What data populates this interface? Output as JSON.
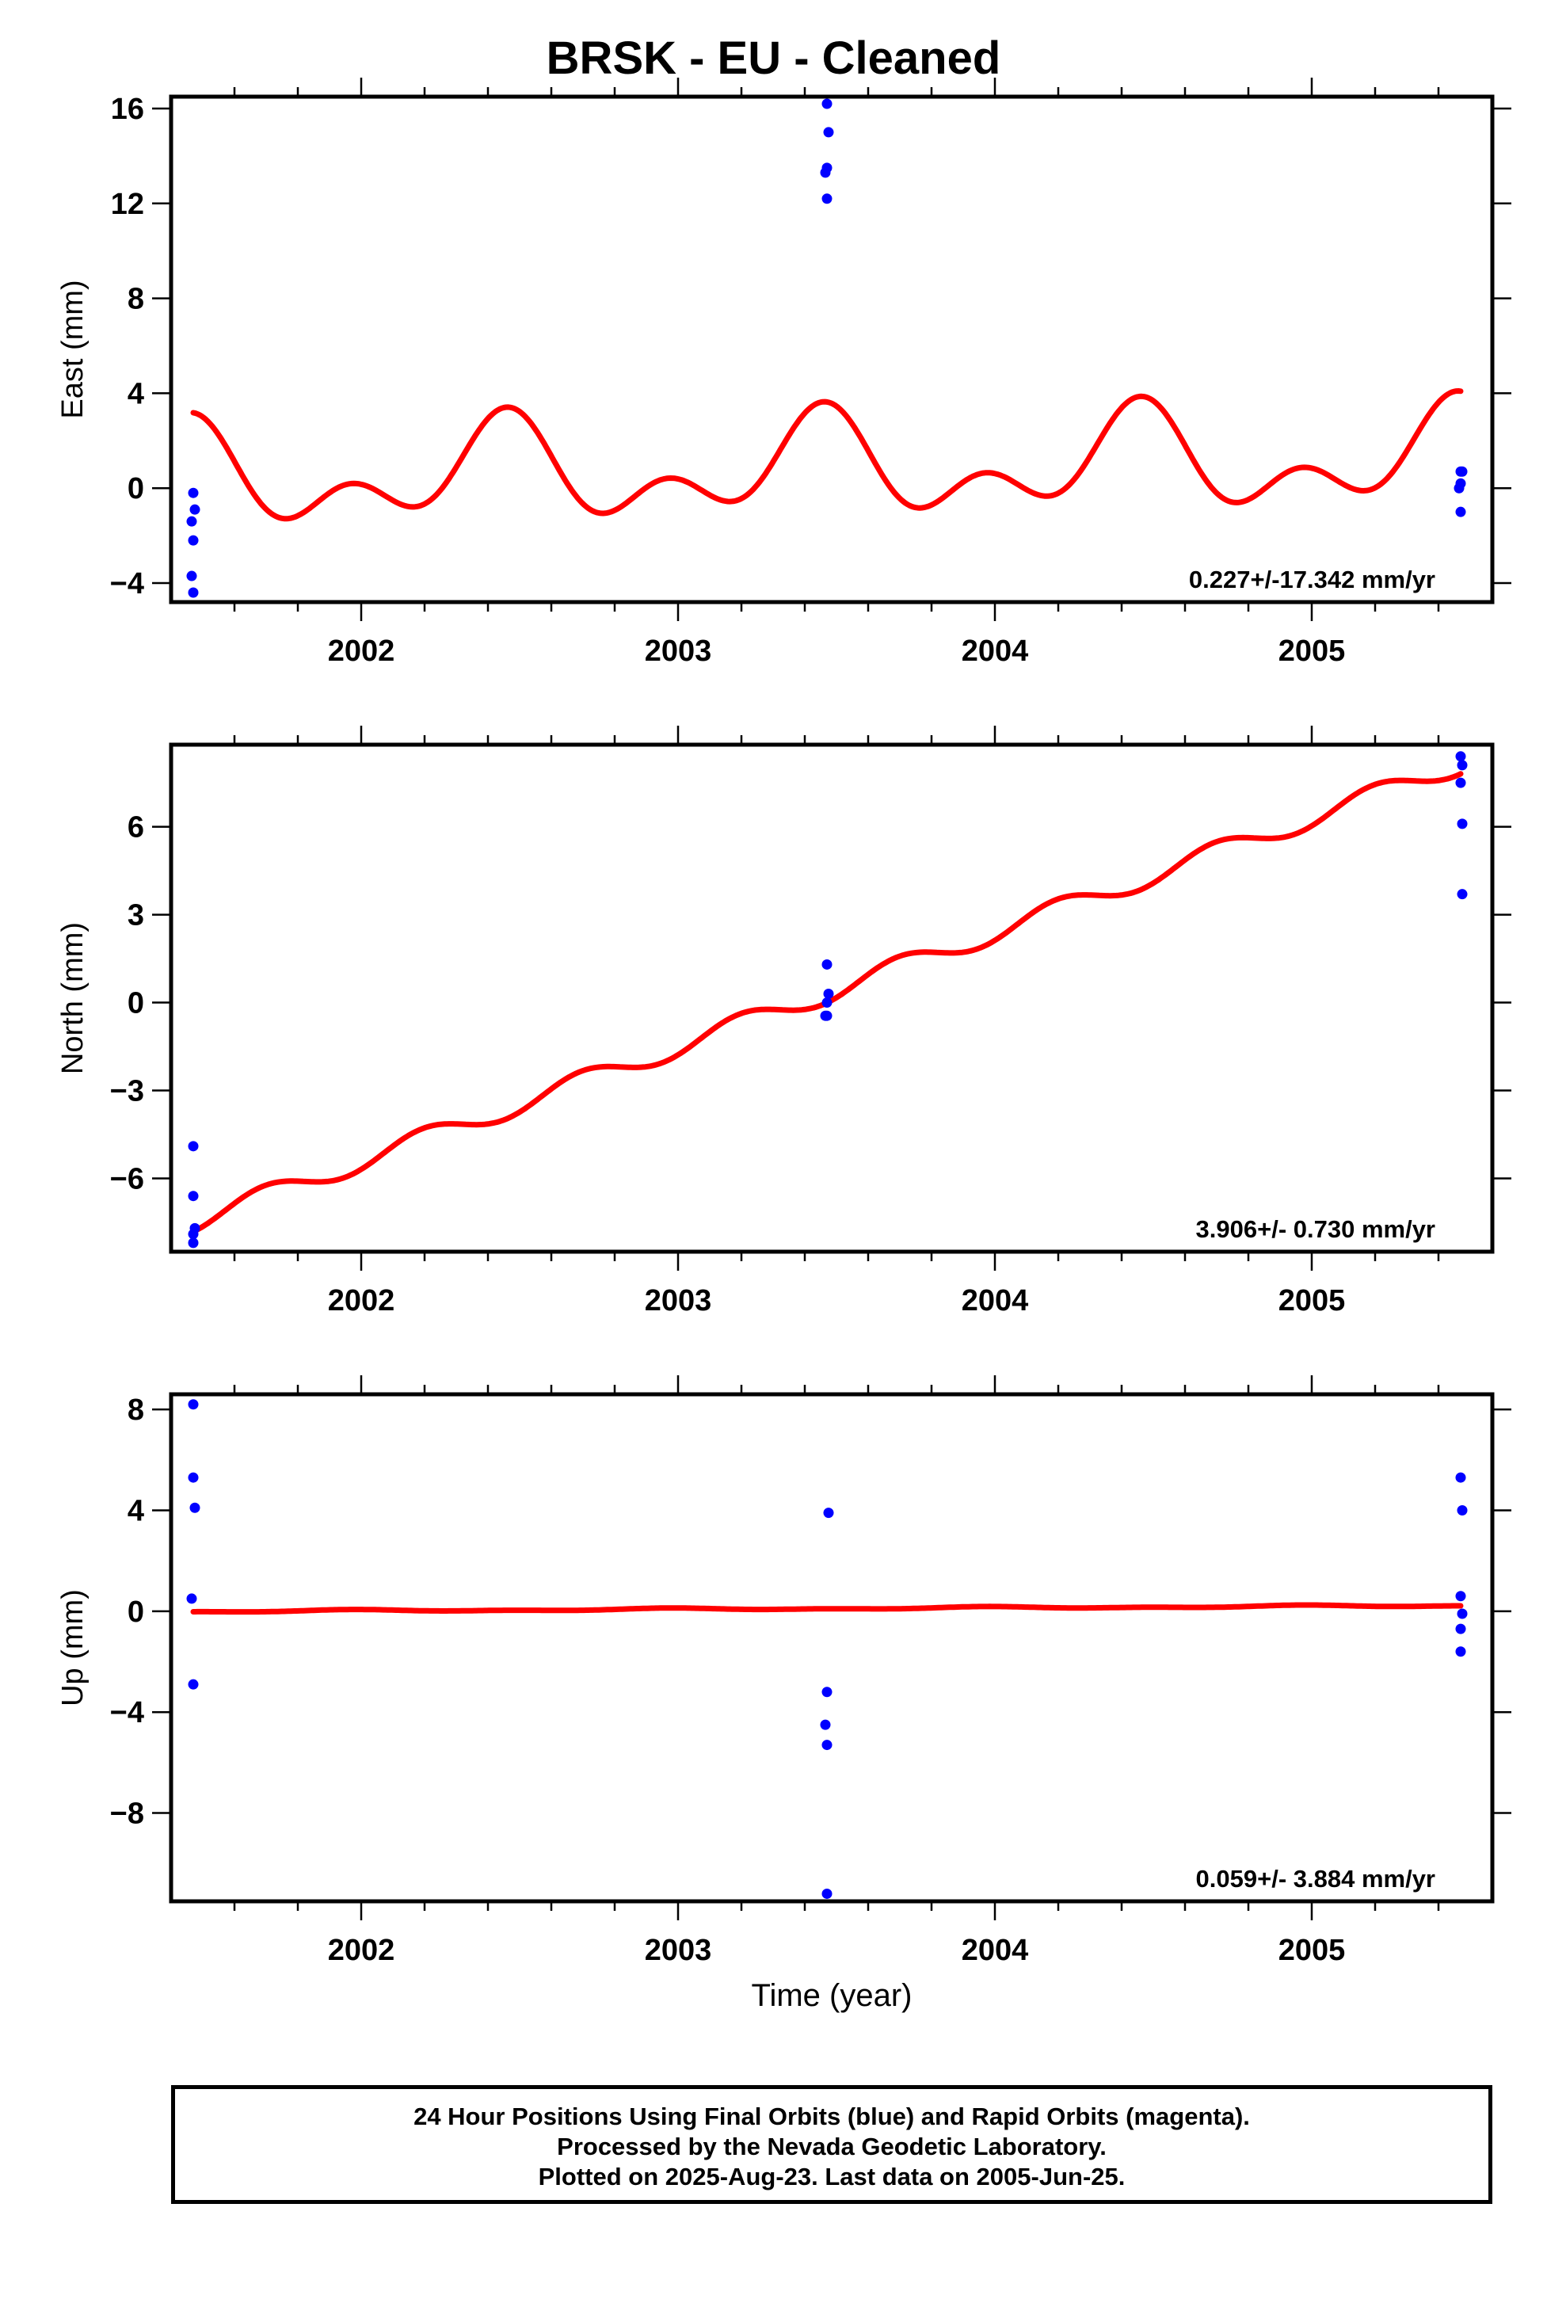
{
  "title": "BRSK  - EU - Cleaned",
  "colors": {
    "data": "#0000ff",
    "model": "#ff0000"
  },
  "x_ticks": [
    2002,
    2003,
    2004,
    2005
  ],
  "x_axis_label": "Time (year)",
  "footer": {
    "line1": "24 Hour Positions Using Final Orbits (blue) and Rapid Orbits (magenta).",
    "line2": "Processed by the Nevada Geodetic Laboratory.",
    "line3": "Plotted on 2025-Aug-23. Last data on 2005-Jun-25."
  },
  "chart_data": [
    {
      "type": "scatter",
      "ylabel": "East (mm)",
      "xlim": [
        2001.4,
        2005.57
      ],
      "ylim": [
        -4.8,
        16.5
      ],
      "yticks": [
        -4,
        0,
        4,
        8,
        12,
        16
      ],
      "ytick_labels": [
        "−4",
        "0",
        "4",
        "8",
        "12",
        "16"
      ],
      "rate_text": "0.227+/-17.342 mm/yr",
      "points": [
        [
          2001.47,
          -0.2
        ],
        [
          2001.475,
          -0.9
        ],
        [
          2001.465,
          -1.4
        ],
        [
          2001.47,
          -2.2
        ],
        [
          2001.465,
          -3.7
        ],
        [
          2001.47,
          -4.4
        ],
        [
          2003.47,
          16.2
        ],
        [
          2003.475,
          15.0
        ],
        [
          2003.47,
          13.5
        ],
        [
          2003.465,
          13.3
        ],
        [
          2003.47,
          12.2
        ],
        [
          2005.47,
          0.7
        ],
        [
          2005.475,
          0.7
        ],
        [
          2005.47,
          0.2
        ],
        [
          2005.465,
          0.0
        ],
        [
          2005.47,
          -1.0
        ]
      ],
      "model": {
        "t0": 2001.47,
        "t1": 2005.47,
        "offset": 3.18,
        "rate": 0.227,
        "annual_sin": -0.25,
        "annual_cos": 1.55,
        "semi_sin": -0.06,
        "semi_cos": 1.27
      }
    },
    {
      "type": "scatter",
      "ylabel": "North (mm)",
      "xlim": [
        2001.4,
        2005.57
      ],
      "ylim": [
        -8.5,
        8.8
      ],
      "yticks": [
        -6,
        -3,
        0,
        3,
        6
      ],
      "ytick_labels": [
        "−6",
        "−3",
        "0",
        "3",
        "6"
      ],
      "rate_text": "3.906+/- 0.730 mm/yr",
      "points": [
        [
          2001.47,
          -4.9
        ],
        [
          2001.47,
          -6.6
        ],
        [
          2001.475,
          -7.7
        ],
        [
          2001.47,
          -7.9
        ],
        [
          2001.47,
          -8.2
        ],
        [
          2003.47,
          1.3
        ],
        [
          2003.475,
          0.3
        ],
        [
          2003.47,
          0.0
        ],
        [
          2003.465,
          -0.45
        ],
        [
          2003.47,
          -0.45
        ],
        [
          2005.47,
          8.4
        ],
        [
          2005.475,
          8.1
        ],
        [
          2005.47,
          7.5
        ],
        [
          2005.475,
          6.1
        ],
        [
          2005.475,
          3.7
        ]
      ],
      "model": {
        "t0": 2001.47,
        "t1": 2005.47,
        "offset": -7.82,
        "rate": 3.906,
        "annual_sin": 0.0,
        "annual_cos": 0.0,
        "semi_sin": 0.1,
        "semi_cos": -0.34
      }
    },
    {
      "type": "scatter",
      "ylabel": "Up (mm)",
      "xlim": [
        2001.4,
        2005.57
      ],
      "ylim": [
        -11.5,
        8.6
      ],
      "yticks": [
        -8,
        -4,
        0,
        4,
        8
      ],
      "ytick_labels": [
        "−8",
        "−4",
        "0",
        "4",
        "8"
      ],
      "rate_text": "0.059+/- 3.884 mm/yr",
      "points": [
        [
          2001.47,
          8.2
        ],
        [
          2001.47,
          5.3
        ],
        [
          2001.475,
          4.1
        ],
        [
          2001.465,
          0.5
        ],
        [
          2001.47,
          -2.9
        ],
        [
          2003.475,
          3.9
        ],
        [
          2003.47,
          -3.2
        ],
        [
          2003.465,
          -4.5
        ],
        [
          2003.47,
          -5.3
        ],
        [
          2003.47,
          -11.2
        ],
        [
          2005.47,
          5.3
        ],
        [
          2005.475,
          4.0
        ],
        [
          2005.47,
          0.6
        ],
        [
          2005.475,
          -0.1
        ],
        [
          2005.47,
          -0.7
        ],
        [
          2005.47,
          -1.6
        ]
      ],
      "model": {
        "t0": 2001.47,
        "t1": 2005.47,
        "offset": -0.02,
        "rate": 0.059,
        "annual_sin": 0.0,
        "annual_cos": -0.03,
        "semi_sin": 0.0,
        "semi_cos": 0.02
      }
    }
  ]
}
